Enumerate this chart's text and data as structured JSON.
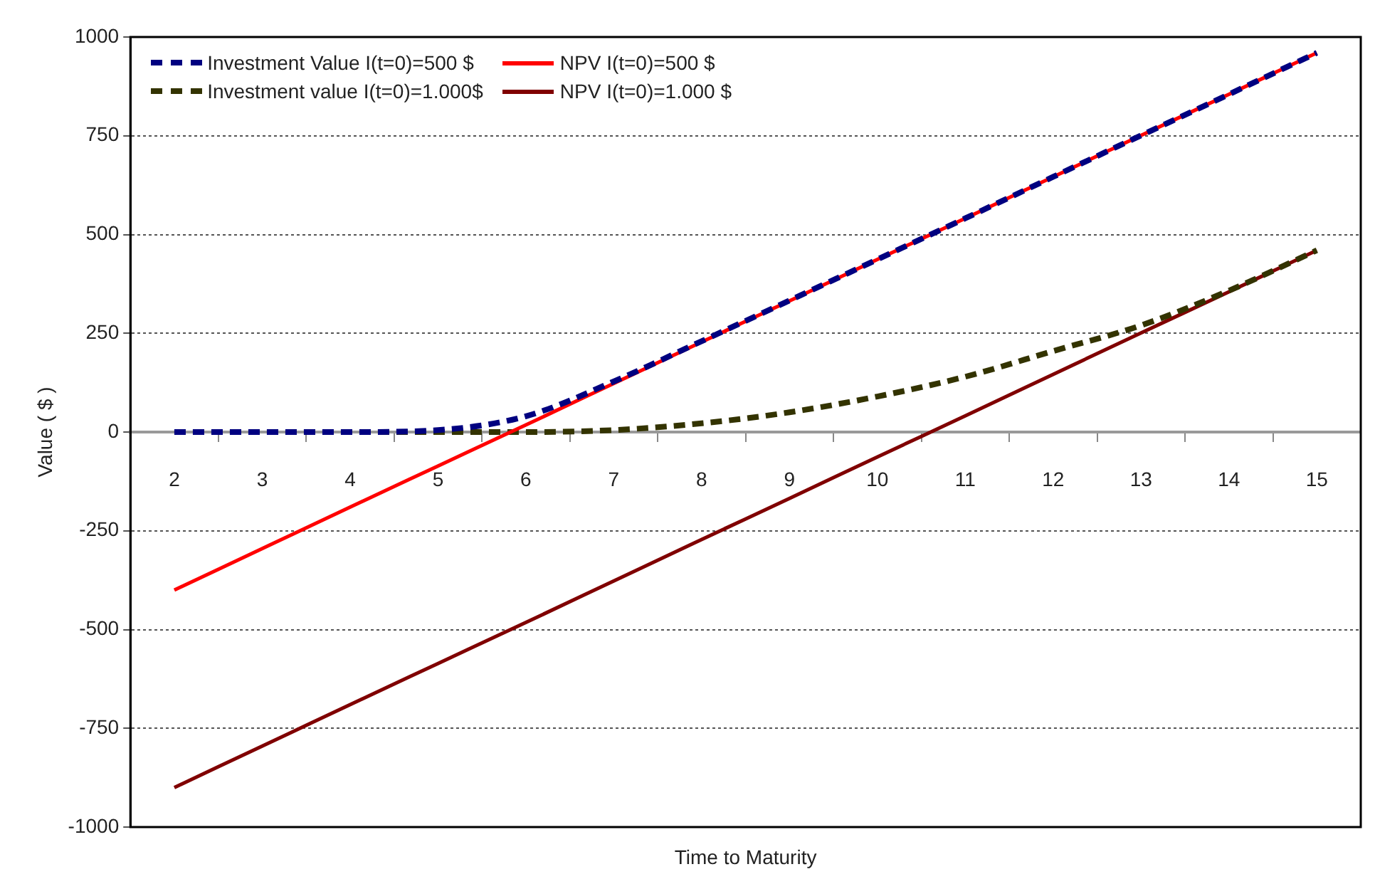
{
  "chart_data": {
    "type": "line",
    "xlabel": "Time to Maturity",
    "ylabel": "Value ( $ )",
    "categories": [
      "2",
      "3",
      "4",
      "5",
      "6",
      "7",
      "8",
      "9",
      "10",
      "11",
      "12",
      "13",
      "14",
      "15"
    ],
    "series": [
      {
        "name": "Investment Value I(t=0)=500 $",
        "color": "#000080",
        "line_style": "dashed",
        "values": [
          0,
          0,
          0,
          5,
          40,
          128,
          230,
          333,
          437,
          541,
          646,
          751,
          855,
          960
        ]
      },
      {
        "name": "NPV I(t=0)=500 $",
        "color": "#ff0000",
        "line_style": "solid",
        "values": [
          -400,
          -295,
          -190,
          -86,
          18,
          123,
          228,
          332,
          437,
          541,
          646,
          751,
          855,
          960
        ]
      },
      {
        "name": "Investment value I(t=0)=1.000$",
        "color": "#333300",
        "line_style": "dashed",
        "values": [
          0,
          0,
          0,
          0,
          0,
          5,
          22,
          50,
          90,
          140,
          205,
          270,
          358,
          460
        ]
      },
      {
        "name": "NPV I(t=0)=1.000 $",
        "color": "#800000",
        "line_style": "solid",
        "values": [
          -900,
          -795,
          -690,
          -586,
          -482,
          -377,
          -272,
          -168,
          -63,
          41,
          146,
          251,
          355,
          460
        ]
      }
    ],
    "ylim": [
      -1000,
      1000
    ],
    "yticks": [
      -1000,
      -750,
      -500,
      -250,
      0,
      250,
      500,
      750,
      1000
    ],
    "grid": "y",
    "legend": "top left",
    "marker": "none"
  }
}
